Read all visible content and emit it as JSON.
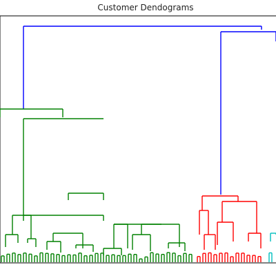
{
  "chart_data": {
    "type": "dendrogram",
    "title": "Customer Dendograms",
    "xlabel": "",
    "ylabel": "",
    "grid": false,
    "colors": {
      "root": "#0000ff",
      "cluster_green": "#008000",
      "cluster_red": "#ff0000",
      "cluster_cyan": "#00bfbf",
      "axes": "#000000"
    },
    "clusters": [
      {
        "color_key": "cluster_green",
        "leaf_share": 0.71
      },
      {
        "color_key": "cluster_red",
        "leaf_share": 0.235
      },
      {
        "color_key": "cluster_cyan",
        "leaf_share": 0.055
      }
    ],
    "leaf_labels": "unreadable (dense, rotated)"
  }
}
